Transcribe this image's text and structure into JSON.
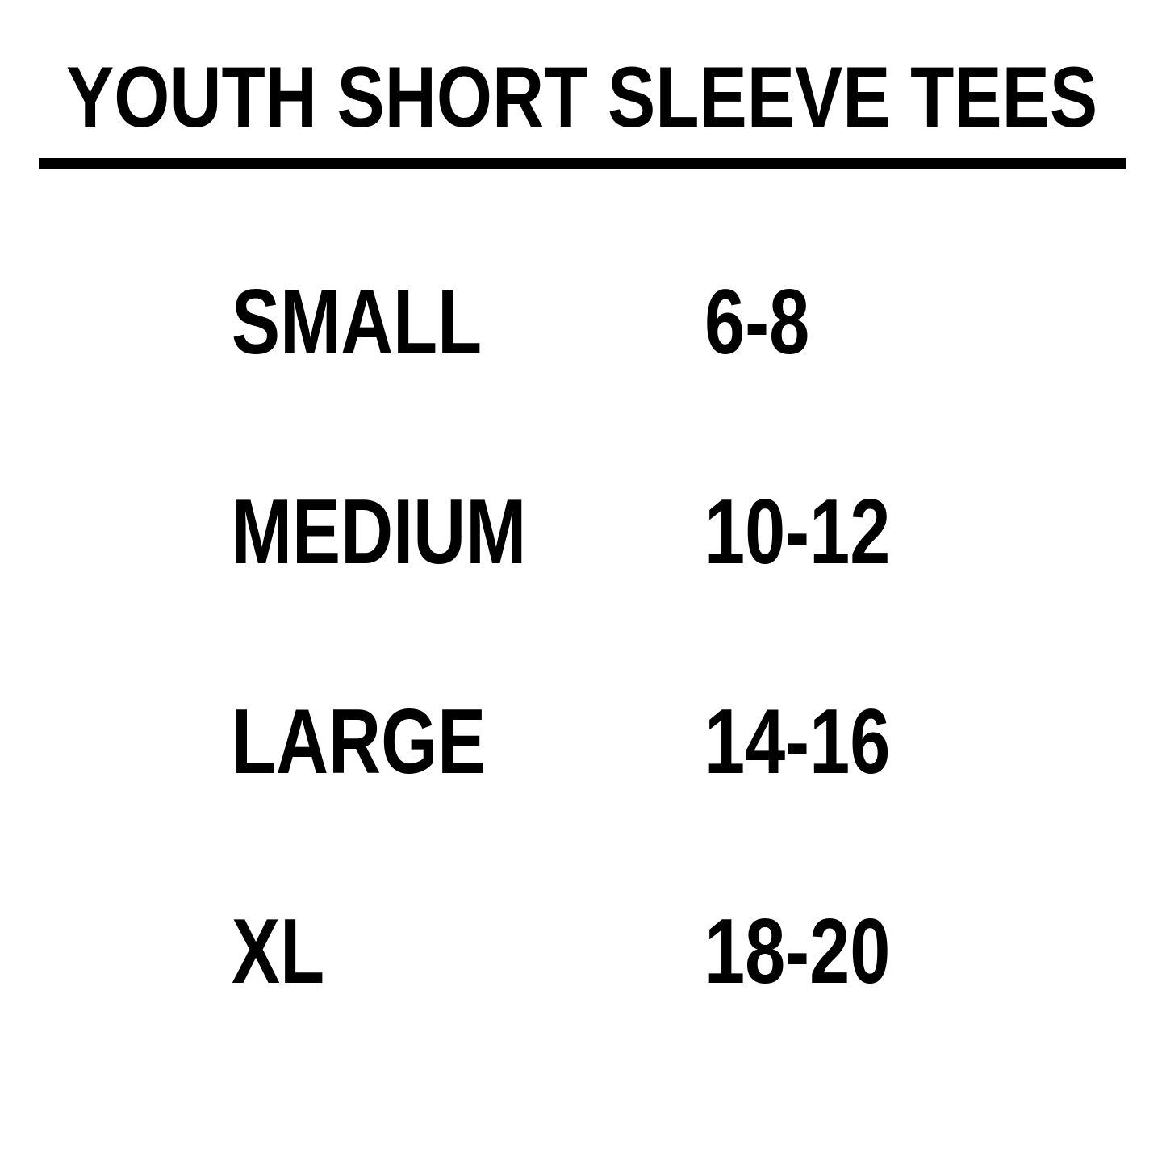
{
  "title": "YOUTH SHORT SLEEVE TEES",
  "rows": [
    {
      "size": "SMALL",
      "range": "6-8"
    },
    {
      "size": "MEDIUM",
      "range": "10-12"
    },
    {
      "size": "LARGE",
      "range": "14-16"
    },
    {
      "size": "XL",
      "range": "18-20"
    }
  ],
  "colors": {
    "text": "#000000",
    "background": "#ffffff"
  }
}
